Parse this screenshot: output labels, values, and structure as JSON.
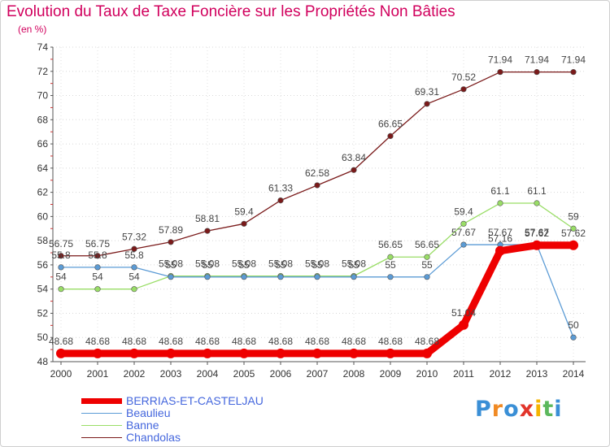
{
  "chart_data": {
    "type": "line",
    "title": "Evolution du Taux de Taxe Foncière sur les Propriétés Non Bâties",
    "ylabel": "(en %)",
    "xlabel": "",
    "ylim": [
      48,
      74
    ],
    "yticks": [
      "48",
      "50",
      "52",
      "54",
      "56",
      "58",
      "60",
      "62",
      "64",
      "66",
      "68",
      "70",
      "72",
      "74"
    ],
    "categories": [
      "2000",
      "2001",
      "2002",
      "2003",
      "2004",
      "2005",
      "2006",
      "2007",
      "2008",
      "2009",
      "2010",
      "2011",
      "2012",
      "2013",
      "2014"
    ],
    "series": [
      {
        "name": "BERRIAS-ET-CASTELJAU",
        "color": "#ee0000",
        "values": [
          48.68,
          48.68,
          48.68,
          48.68,
          48.68,
          48.68,
          48.68,
          48.68,
          48.68,
          48.68,
          48.68,
          51.04,
          57.16,
          57.62,
          57.62
        ],
        "labels": [
          "48.68",
          "48.68",
          "48.68",
          "48.68",
          "48.68",
          "48.68",
          "48.68",
          "48.68",
          "48.68",
          "48.68",
          "48.68",
          "51.04",
          "57.16",
          "57.62",
          "57.62"
        ]
      },
      {
        "name": "Beaulieu",
        "color": "#5b9bd5",
        "values": [
          55.8,
          55.8,
          55.8,
          55,
          55,
          55,
          55,
          55,
          55,
          55,
          55,
          57.67,
          57.67,
          57.67,
          50
        ],
        "labels": [
          "55.8",
          "55.8",
          "55.8",
          "55",
          "55",
          "55",
          "55",
          "55",
          "55",
          "55",
          "55",
          "57.67",
          "57.67",
          "57.67",
          "50"
        ]
      },
      {
        "name": "Banne",
        "color": "#99dd66",
        "values": [
          54,
          54,
          54,
          55.08,
          55.08,
          55.08,
          55.08,
          55.08,
          55.08,
          56.65,
          56.65,
          59.4,
          61.1,
          61.1,
          59
        ],
        "labels": [
          "54",
          "54",
          "54",
          "55.08",
          "55.08",
          "55.08",
          "55.08",
          "55.08",
          "55.08",
          "56.65",
          "56.65",
          "59.4",
          "61.1",
          "61.1",
          "59"
        ]
      },
      {
        "name": "Chandolas",
        "color": "#7a1a1a",
        "values": [
          56.75,
          56.75,
          57.32,
          57.89,
          58.81,
          59.4,
          61.33,
          62.58,
          63.84,
          66.65,
          69.31,
          70.52,
          71.94,
          71.94,
          71.94
        ],
        "labels": [
          "56.75",
          "56.75",
          "57.32",
          "57.89",
          "58.81",
          "59.4",
          "61.33",
          "62.58",
          "63.84",
          "66.65",
          "69.31",
          "70.52",
          "71.94",
          "71.94",
          "71.94"
        ]
      }
    ]
  },
  "logo": {
    "letters": [
      "P",
      "r",
      "o",
      "x",
      "i",
      "t",
      "i"
    ],
    "colors": [
      "#3a8fd6",
      "#f08a24",
      "#3a8fd6",
      "#e2352b",
      "#f5b400",
      "#5cb85c",
      "#3a8fd6"
    ]
  }
}
